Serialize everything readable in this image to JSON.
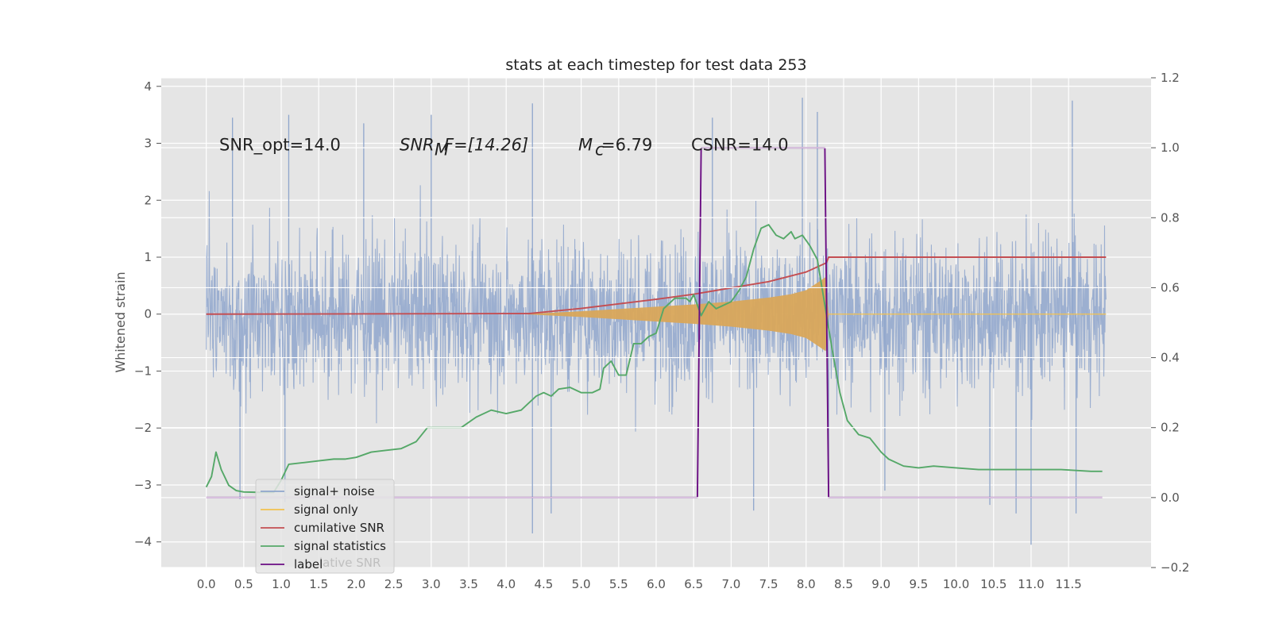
{
  "chart_data": {
    "type": "line",
    "title": "stats at each timestep for test data 253",
    "ylabel": "Whitened strain",
    "y2label": "",
    "xlim": [
      -0.6,
      12.6
    ],
    "ylim": [
      -4.45,
      4.15
    ],
    "y2lim": [
      -0.2,
      1.2
    ],
    "xticks": [
      "0.0",
      "0.5",
      "1.0",
      "1.5",
      "2.0",
      "2.5",
      "3.0",
      "3.5",
      "4.0",
      "4.5",
      "5.0",
      "5.5",
      "6.0",
      "6.5",
      "7.0",
      "7.5",
      "8.0",
      "8.5",
      "9.0",
      "9.5",
      "10.0",
      "10.5",
      "11.0",
      "11.5"
    ],
    "yticks": [
      "4",
      "3",
      "2",
      "1",
      "0",
      "−1",
      "−2",
      "−3",
      "−4"
    ],
    "y2ticks": [
      "1.2",
      "1.0",
      "0.8",
      "0.6",
      "0.4",
      "0.2",
      "0.0",
      "−0.2"
    ],
    "grid": true,
    "background": "#e5e5e5",
    "annotations": [
      {
        "id": "snr_opt",
        "text": "SNR_opt=14.0"
      },
      {
        "id": "snr_mf_sym",
        "text": "SNR"
      },
      {
        "id": "snr_mf_sub",
        "text": "M"
      },
      {
        "id": "snr_mf_rest",
        "text": "F=[14.26]"
      },
      {
        "id": "mc_sym",
        "text": "M"
      },
      {
        "id": "mc_sub",
        "text": "c"
      },
      {
        "id": "mc_rest",
        "text": "=6.79"
      },
      {
        "id": "csnr",
        "text": "CSNR=14.0"
      }
    ],
    "legend": {
      "placement": "lower-left",
      "entries": [
        {
          "label": "signal+ noise",
          "color": "#8fa6cc"
        },
        {
          "label": "signal only",
          "color": "#f2c14e"
        },
        {
          "label": "cumilative SNR",
          "color": "#c44e52"
        },
        {
          "label": "signal statistics",
          "color": "#55a868"
        },
        {
          "label": "label",
          "color": "#6a0d83"
        }
      ],
      "ghost_text": "lative SNR"
    },
    "series": [
      {
        "name": "signal+ noise",
        "axis": "left",
        "style": "noise",
        "color": "#8fa6cc",
        "x_range": [
          0.0,
          12.0
        ],
        "typical_band": [
          -1.7,
          1.7
        ],
        "spikes": [
          [
            0.35,
            3.45
          ],
          [
            1.1,
            3.5
          ],
          [
            2.1,
            3.35
          ],
          [
            3.0,
            3.5
          ],
          [
            4.35,
            3.7
          ],
          [
            6.75,
            3.45
          ],
          [
            8.15,
            3.55
          ],
          [
            7.95,
            3.8
          ],
          [
            11.55,
            3.75
          ],
          [
            4.35,
            -3.85
          ],
          [
            4.6,
            -3.5
          ],
          [
            7.3,
            -3.45
          ],
          [
            10.8,
            -3.5
          ],
          [
            11.0,
            -4.05
          ],
          [
            11.6,
            -3.5
          ],
          [
            10.45,
            -3.35
          ],
          [
            8.3,
            -3.2
          ],
          [
            0.45,
            -3.25
          ],
          [
            1.05,
            -3.3
          ],
          [
            9.05,
            -3.1
          ]
        ]
      },
      {
        "name": "signal only",
        "axis": "left",
        "style": "chirp",
        "color": "#f2c14e",
        "x": [
          0.0,
          4.2,
          5.0,
          5.5,
          6.0,
          6.5,
          7.0,
          7.5,
          7.8,
          8.0,
          8.15,
          8.26,
          8.3,
          12.0
        ],
        "amplitude": [
          0.0,
          0.0,
          0.05,
          0.09,
          0.13,
          0.17,
          0.22,
          0.29,
          0.35,
          0.42,
          0.55,
          0.65,
          0.0,
          0.0
        ]
      },
      {
        "name": "cumilative SNR",
        "axis": "left",
        "color": "#c44e52",
        "x": [
          0.0,
          4.3,
          5.0,
          5.5,
          6.0,
          6.5,
          7.0,
          7.5,
          8.0,
          8.27,
          8.3,
          12.0
        ],
        "y": [
          0.0,
          0.01,
          0.1,
          0.18,
          0.26,
          0.35,
          0.46,
          0.57,
          0.74,
          0.9,
          1.0,
          1.0
        ]
      },
      {
        "name": "signal statistics",
        "axis": "right",
        "color": "#55a868",
        "x": [
          0.0,
          0.07,
          0.13,
          0.2,
          0.3,
          0.4,
          0.5,
          0.7,
          0.9,
          1.0,
          1.1,
          1.3,
          1.5,
          1.7,
          1.85,
          2.0,
          2.2,
          2.4,
          2.6,
          2.8,
          2.95,
          3.0,
          3.2,
          3.4,
          3.6,
          3.8,
          4.0,
          4.2,
          4.3,
          4.4,
          4.5,
          4.6,
          4.7,
          4.85,
          5.0,
          5.15,
          5.25,
          5.3,
          5.4,
          5.5,
          5.6,
          5.7,
          5.8,
          5.9,
          6.0,
          6.1,
          6.25,
          6.4,
          6.45,
          6.5,
          6.55,
          6.6,
          6.7,
          6.8,
          6.9,
          7.0,
          7.1,
          7.2,
          7.3,
          7.4,
          7.5,
          7.6,
          7.7,
          7.8,
          7.85,
          7.95,
          8.05,
          8.15,
          8.25,
          8.35,
          8.45,
          8.55,
          8.7,
          8.85,
          9.0,
          9.1,
          9.3,
          9.5,
          9.7,
          10.0,
          10.3,
          10.6,
          11.0,
          11.4,
          11.8,
          11.95
        ],
        "y": [
          0.03,
          0.06,
          0.13,
          0.08,
          0.035,
          0.02,
          0.016,
          0.015,
          0.015,
          0.05,
          0.095,
          0.1,
          0.105,
          0.11,
          0.11,
          0.115,
          0.13,
          0.135,
          0.14,
          0.16,
          0.2,
          0.2,
          0.2,
          0.2,
          0.23,
          0.25,
          0.24,
          0.25,
          0.27,
          0.29,
          0.3,
          0.29,
          0.31,
          0.315,
          0.3,
          0.3,
          0.31,
          0.37,
          0.39,
          0.35,
          0.35,
          0.44,
          0.44,
          0.46,
          0.47,
          0.54,
          0.57,
          0.57,
          0.56,
          0.58,
          0.55,
          0.52,
          0.56,
          0.54,
          0.55,
          0.56,
          0.59,
          0.63,
          0.71,
          0.77,
          0.78,
          0.75,
          0.74,
          0.76,
          0.74,
          0.75,
          0.72,
          0.68,
          0.55,
          0.42,
          0.3,
          0.22,
          0.18,
          0.17,
          0.13,
          0.11,
          0.09,
          0.085,
          0.09,
          0.085,
          0.08,
          0.08,
          0.08,
          0.08,
          0.075,
          0.075
        ]
      },
      {
        "name": "label",
        "axis": "right",
        "color": "#6a0d83",
        "x": [
          0.0,
          6.55,
          6.6,
          8.25,
          8.3,
          11.95
        ],
        "y": [
          0.0,
          0.0,
          1.0,
          1.0,
          0.0,
          0.0
        ]
      }
    ]
  }
}
